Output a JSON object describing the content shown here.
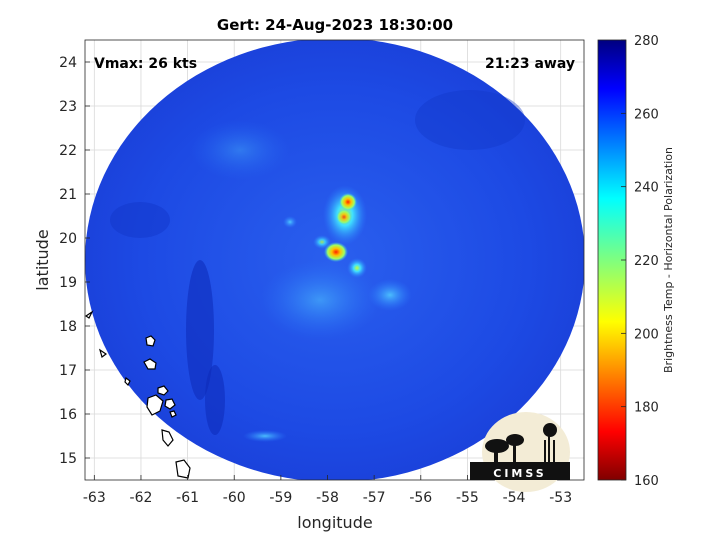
{
  "title": "Gert: 24-Aug-2023 18:30:00",
  "annotations": {
    "vmax": "Vmax: 26 kts",
    "away": "21:23 away"
  },
  "axes": {
    "xlabel": "longitude",
    "ylabel": "latitude",
    "xlim": [
      -63.2,
      -52.5
    ],
    "ylim": [
      14.5,
      24.5
    ],
    "xticks": [
      "-63",
      "-62",
      "-61",
      "-60",
      "-59",
      "-58",
      "-57",
      "-56",
      "-55",
      "-54",
      "-53"
    ],
    "yticks": [
      "15",
      "16",
      "17",
      "18",
      "19",
      "20",
      "21",
      "22",
      "23",
      "24"
    ],
    "grid": true
  },
  "colorbar": {
    "label": "Brightness Temp - Horizontal Polarization",
    "min": 160,
    "max": 280,
    "ticks": [
      "160",
      "180",
      "200",
      "220",
      "240",
      "260",
      "280"
    ],
    "colormap": "jet"
  },
  "logo": {
    "text": "CIMSS"
  },
  "colors": {
    "background_field": "#1f4fe6",
    "grid": "#d9d9d9",
    "axis": "#262626"
  }
}
